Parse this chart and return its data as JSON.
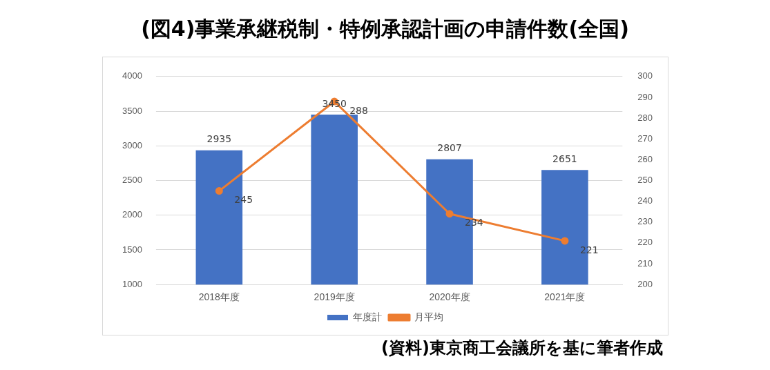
{
  "chart_data": {
    "type": "bar",
    "title": "(図4)事業承継税制・特例承認計画の申請件数(全国)",
    "categories": [
      "2018年度",
      "2019年度",
      "2020年度",
      "2021年度"
    ],
    "series": [
      {
        "name": "年度計",
        "color": "#4472c4",
        "values": [
          2935,
          3450,
          2807,
          2651
        ]
      },
      {
        "name": "月平均",
        "type": "line",
        "axis": "y2",
        "color": "#ed7d31",
        "values": [
          245,
          288,
          234,
          221
        ]
      }
    ],
    "ylim": [
      1000,
      4000
    ],
    "yticks": [
      1000,
      1500,
      2000,
      2500,
      3000,
      3500,
      4000
    ],
    "y2lim": [
      200,
      300
    ],
    "y2ticks": [
      200,
      210,
      220,
      230,
      240,
      250,
      260,
      270,
      280,
      290,
      300
    ],
    "grid": "y",
    "legend": "bottom",
    "data_labels": true,
    "marker": "circle",
    "line_style": "solid",
    "annotations": [
      "(資料)東京商工会議所を基に筆者作成"
    ]
  }
}
